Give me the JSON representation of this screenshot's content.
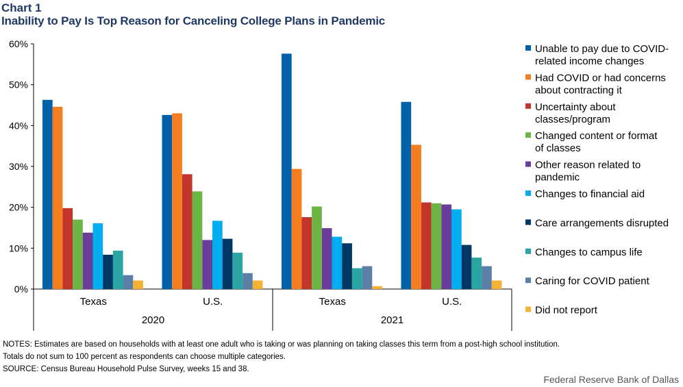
{
  "header": {
    "label": "Chart 1",
    "title": "Inability to Pay Is Top Reason for Canceling College Plans in Pandemic"
  },
  "chart_data": {
    "type": "bar",
    "ylim": [
      0,
      60
    ],
    "yticks": [
      0,
      10,
      20,
      30,
      40,
      50,
      60
    ],
    "ytick_labels": [
      "0%",
      "10%",
      "20%",
      "30%",
      "40%",
      "50%",
      "60%"
    ],
    "grid": false,
    "legend_position": "right",
    "groups": [
      {
        "year": "2020",
        "categories": [
          "Texas",
          "U.S."
        ]
      },
      {
        "year": "2021",
        "categories": [
          "Texas",
          "U.S."
        ]
      }
    ],
    "categories": [
      "Texas 2020",
      "U.S. 2020",
      "Texas 2021",
      "U.S. 2021"
    ],
    "series": [
      {
        "name": "Unable to pay due to COVID-related income changes",
        "legend_lines": [
          "Unable to pay due to COVID-",
          "related income changes"
        ],
        "color": "#0061a9",
        "values": [
          46.3,
          42.6,
          57.6,
          45.8
        ]
      },
      {
        "name": "Had COVID or had concerns about contracting it",
        "legend_lines": [
          "Had COVID or had concerns",
          "about contracting it"
        ],
        "color": "#f47d20",
        "values": [
          44.6,
          43.0,
          29.4,
          35.3
        ]
      },
      {
        "name": "Uncertainty about classes/program",
        "legend_lines": [
          "Uncertainty about",
          "classes/program"
        ],
        "color": "#c1352b",
        "values": [
          19.8,
          28.1,
          17.6,
          21.2
        ]
      },
      {
        "name": "Changed content or format of classes",
        "legend_lines": [
          "Changed content or format",
          "of classes"
        ],
        "color": "#6cb444",
        "values": [
          17.0,
          23.9,
          20.2,
          21.0
        ]
      },
      {
        "name": "Other reason related to pandemic",
        "legend_lines": [
          "Other reason related to",
          "pandemic"
        ],
        "color": "#6a3d9a",
        "values": [
          13.8,
          12.0,
          14.9,
          20.7
        ]
      },
      {
        "name": "Changes to financial aid",
        "legend_lines": [
          "Changes to financial aid"
        ],
        "color": "#00aeef",
        "values": [
          16.1,
          16.7,
          12.8,
          19.5
        ]
      },
      {
        "name": "Care arrangements disrupted",
        "legend_lines": [
          "Care arrangements disrupted"
        ],
        "color": "#003865",
        "values": [
          8.4,
          12.3,
          11.2,
          10.8
        ]
      },
      {
        "name": "Changes to campus life",
        "legend_lines": [
          "Changes to campus life"
        ],
        "color": "#2aa5a4",
        "values": [
          9.4,
          8.9,
          5.1,
          7.7
        ]
      },
      {
        "name": "Caring for COVID patient",
        "legend_lines": [
          "Caring for COVID patient"
        ],
        "color": "#5b7fa6",
        "values": [
          3.4,
          3.9,
          5.6,
          5.6
        ]
      },
      {
        "name": "Did not report",
        "legend_lines": [
          "Did not report"
        ],
        "color": "#f5b335",
        "values": [
          2.1,
          2.1,
          0.7,
          2.1
        ]
      }
    ]
  },
  "notes": {
    "line1": "NOTES: Estimates are based on households with at least one adult who is taking or was planning  on taking classes this term from a post-high school institution.",
    "line2": "Totals do not sum to 100 percent as respondents can choose multiple categories.",
    "source": "SOURCE: Census Bureau Household Pulse Survey, weeks 15 and 38."
  },
  "credit": "Federal Reserve Bank of Dallas"
}
